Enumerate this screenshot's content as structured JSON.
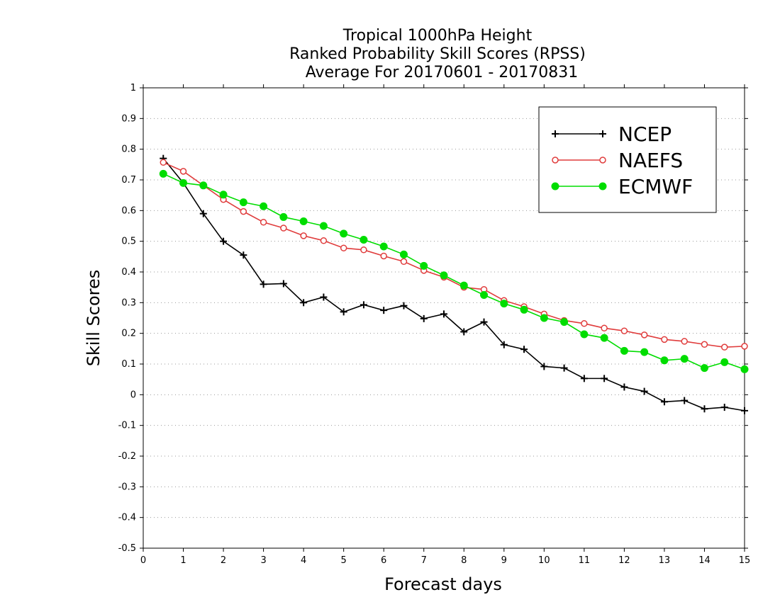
{
  "chart_data": {
    "type": "line",
    "title_lines": [
      "Tropical 1000hPa Height",
      "Ranked Probability Skill Scores (RPSS)",
      "Average For 20170601 - 20170831"
    ],
    "xlabel": "Forecast days",
    "ylabel": "Skill Scores",
    "xlim": [
      0,
      15
    ],
    "ylim": [
      -0.5,
      1
    ],
    "x_ticks": [
      "0",
      "1",
      "2",
      "3",
      "4",
      "5",
      "6",
      "7",
      "8",
      "9",
      "10",
      "11",
      "12",
      "13",
      "14",
      "15"
    ],
    "y_ticks": [
      "-0.5",
      "-0.4",
      "-0.3",
      "-0.2",
      "-0.1",
      "0",
      "0.1",
      "0.2",
      "0.3",
      "0.4",
      "0.5",
      "0.6",
      "0.7",
      "0.8",
      "0.9",
      "1"
    ],
    "grid": "horizontal dotted",
    "legend_position": "top-right",
    "x": [
      0.5,
      1,
      1.5,
      2,
      2.5,
      3,
      3.5,
      4,
      4.5,
      5,
      5.5,
      6,
      6.5,
      7,
      7.5,
      8,
      8.5,
      9,
      9.5,
      10,
      10.5,
      11,
      11.5,
      12,
      12.5,
      13,
      13.5,
      14,
      14.5,
      15
    ],
    "series": [
      {
        "name": "NCEP",
        "color": "#000000",
        "marker": "plus",
        "values": [
          0.77,
          0.69,
          0.59,
          0.5,
          0.455,
          0.36,
          0.362,
          0.3,
          0.318,
          0.27,
          0.293,
          0.275,
          0.29,
          0.248,
          0.263,
          0.205,
          0.237,
          0.163,
          0.148,
          0.092,
          0.087,
          0.053,
          0.053,
          0.025,
          0.011,
          -0.023,
          -0.019,
          -0.046,
          -0.041,
          -0.052
        ]
      },
      {
        "name": "NAEFS",
        "color": "#e03c3c",
        "marker": "open-circle",
        "values": [
          0.757,
          0.728,
          0.682,
          0.636,
          0.597,
          0.562,
          0.543,
          0.518,
          0.502,
          0.478,
          0.472,
          0.452,
          0.434,
          0.405,
          0.383,
          0.35,
          0.343,
          0.307,
          0.287,
          0.263,
          0.242,
          0.232,
          0.217,
          0.208,
          0.195,
          0.18,
          0.174,
          0.164,
          0.155,
          0.158
        ]
      },
      {
        "name": "ECMWF",
        "color": "#00dd00",
        "marker": "filled-circle",
        "values": [
          0.72,
          0.69,
          0.682,
          0.652,
          0.627,
          0.614,
          0.579,
          0.565,
          0.55,
          0.525,
          0.505,
          0.483,
          0.457,
          0.42,
          0.389,
          0.356,
          0.325,
          0.297,
          0.277,
          0.25,
          0.237,
          0.197,
          0.185,
          0.143,
          0.139,
          0.112,
          0.117,
          0.087,
          0.106,
          0.083
        ]
      }
    ]
  }
}
